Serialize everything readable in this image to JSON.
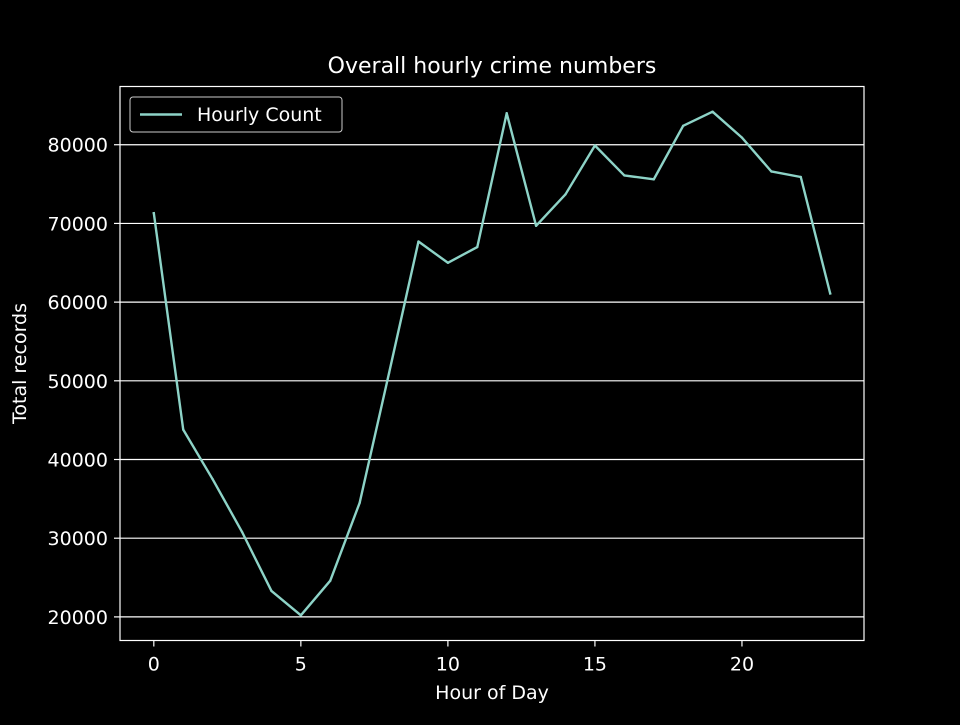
{
  "chart_data": {
    "type": "line",
    "title": "Overall hourly crime numbers",
    "xlabel": "Hour of Day",
    "ylabel": "Total records",
    "xlim": [
      -1.15,
      24.15
    ],
    "ylim": [
      17000,
      87400
    ],
    "x_ticks": [
      0,
      5,
      10,
      15,
      20
    ],
    "y_ticks": [
      20000,
      30000,
      40000,
      50000,
      60000,
      70000,
      80000
    ],
    "grid": "y-major",
    "legend_position": "upper left",
    "series": [
      {
        "name": "Hourly Count",
        "color": "#8dd3c7",
        "x": [
          0,
          1,
          2,
          3,
          4,
          5,
          6,
          7,
          8,
          9,
          10,
          11,
          12,
          13,
          14,
          15,
          16,
          17,
          18,
          19,
          20,
          21,
          22,
          23
        ],
        "values": [
          71300,
          43800,
          37500,
          30800,
          23300,
          20200,
          24600,
          34500,
          51000,
          67700,
          65000,
          67000,
          84000,
          69700,
          73700,
          79900,
          76100,
          75600,
          82400,
          84200,
          80900,
          76600,
          75900,
          61100
        ]
      }
    ]
  }
}
